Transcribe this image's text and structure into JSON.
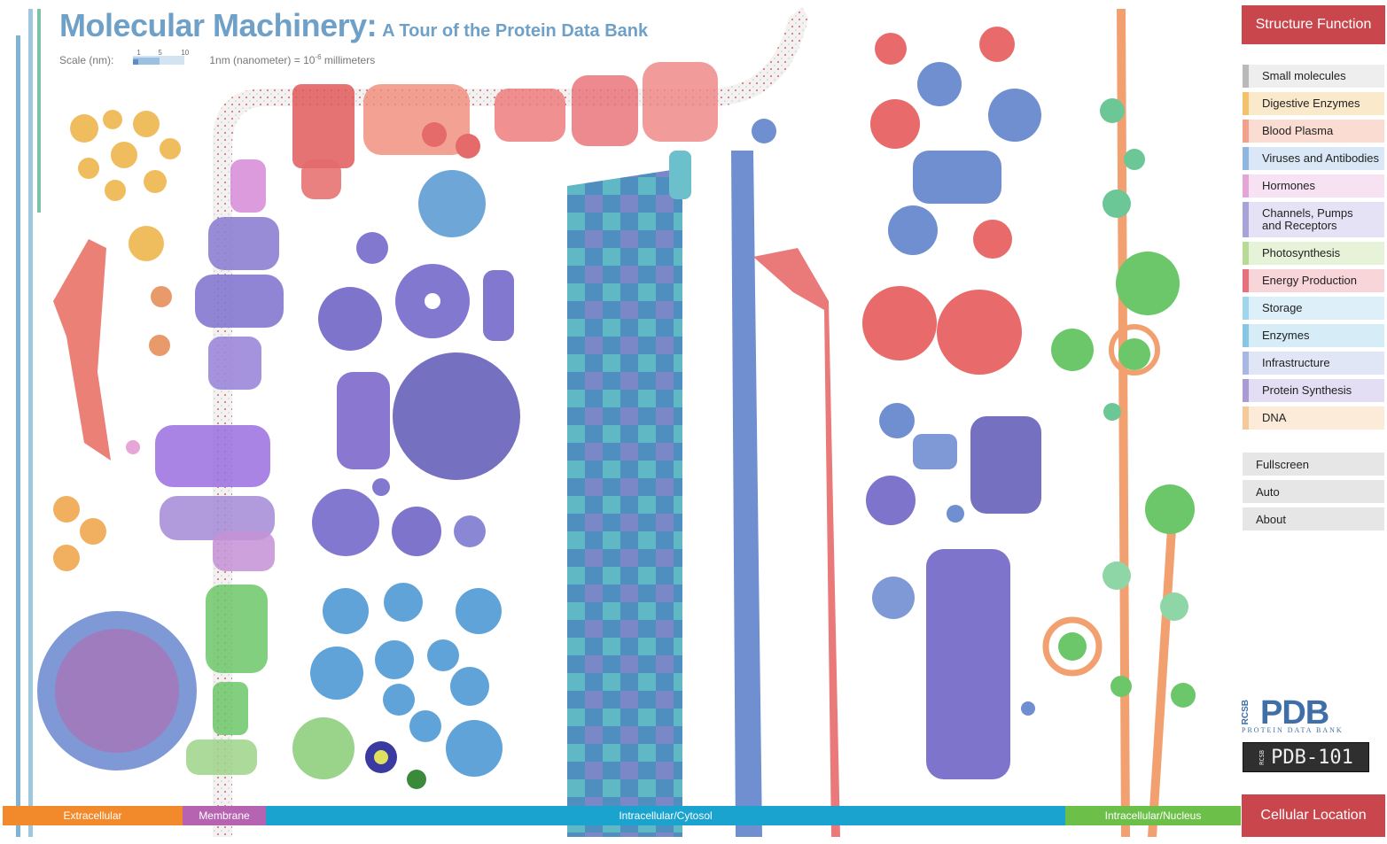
{
  "header": {
    "title": "Molecular Machinery:",
    "subtitle": "A Tour of the Protein Data Bank",
    "scale_label": "Scale (nm):",
    "scale_ticks": [
      "1",
      "5",
      "10"
    ],
    "unit_prefix": "1nm (nanometer) = 10",
    "unit_exp": "-6",
    "unit_suffix": " millimeters"
  },
  "panel": {
    "heading": "Structure Function",
    "items": [
      {
        "label": "Small molecules",
        "color": "#b9b9b9",
        "bg": "#eeeeee"
      },
      {
        "label": "Digestive Enzymes",
        "color": "#f3c26b",
        "bg": "#fbe9cc"
      },
      {
        "label": "Blood Plasma",
        "color": "#f1a08a",
        "bg": "#fbdcd2"
      },
      {
        "label": "Viruses and Antibodies",
        "color": "#8fb7e0",
        "bg": "#d9e7f6"
      },
      {
        "label": "Hormones",
        "color": "#e3a6d7",
        "bg": "#f6e2f2"
      },
      {
        "label": "Channels, Pumps",
        "label2": "and Receptors",
        "color": "#a8a3d8",
        "bg": "#e4e2f4"
      },
      {
        "label": "Photosynthesis",
        "color": "#b7db95",
        "bg": "#e6f3d9"
      },
      {
        "label": "Energy Production",
        "color": "#e8707b",
        "bg": "#f8d5d8"
      },
      {
        "label": "Storage",
        "color": "#9fd6ec",
        "bg": "#ddf0f9"
      },
      {
        "label": "Enzymes",
        "color": "#86c6e4",
        "bg": "#d6ecf7"
      },
      {
        "label": "Infrastructure",
        "color": "#a6b8e3",
        "bg": "#e0e6f6"
      },
      {
        "label": "Protein Synthesis",
        "color": "#a99bd4",
        "bg": "#e3def3"
      },
      {
        "label": "DNA",
        "color": "#f6c99a",
        "bg": "#fcebd9"
      }
    ],
    "buttons": [
      "Fullscreen",
      "Auto",
      "About"
    ],
    "logo_top": "RCSB",
    "logo_main": "PDB",
    "logo_sub": "PROTEIN DATA BANK",
    "pdb101_tag": "RCSB",
    "pdb101": "PDB-101"
  },
  "locations": {
    "heading": "Cellular Location",
    "segments": [
      {
        "label": "Extracellular",
        "color": "#f28a2c"
      },
      {
        "label": "Membrane",
        "color": "#b664b2"
      },
      {
        "label": "Intracellular/Cytosol",
        "color": "#1aa3cf"
      },
      {
        "label": "Intracellular/Nucleus",
        "color": "#6cc04a"
      }
    ]
  }
}
